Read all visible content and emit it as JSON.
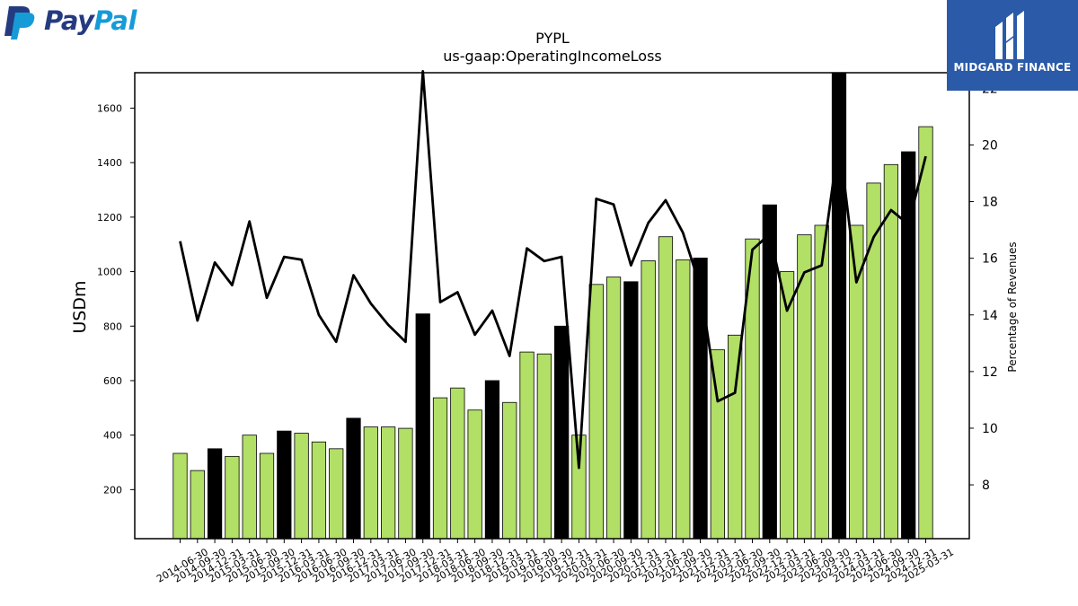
{
  "brand": {
    "paypal_part1": "Pay",
    "paypal_part2": "Pal",
    "watermark": "MIDGARD FINANCE",
    "paypal_dark": "#253b80",
    "paypal_light": "#179bd7",
    "watermark_bg": "#2a5aa8"
  },
  "chart_data": {
    "type": "bar",
    "title": "PYPL",
    "subtitle": "us-gaap:OperatingIncomeLoss",
    "ylabel": "USDm",
    "y2label": "Percentage of Revenues",
    "ylim": [
      20,
      1730
    ],
    "y2lim": [
      6.1,
      22.55
    ],
    "yticks": [
      200,
      400,
      600,
      800,
      1000,
      1200,
      1400,
      1600
    ],
    "y2ticks": [
      8,
      10,
      12,
      14,
      16,
      18,
      20,
      22
    ],
    "categories": [
      "2014-06-30",
      "2014-09-30",
      "2014-12-31",
      "2015-03-31",
      "2015-06-30",
      "2015-09-30",
      "2015-12-31",
      "2016-03-31",
      "2016-06-30",
      "2016-09-30",
      "2016-12-31",
      "2017-03-31",
      "2017-06-30",
      "2017-09-30",
      "2017-12-31",
      "2018-03-31",
      "2018-06-30",
      "2018-09-30",
      "2018-12-31",
      "2019-03-31",
      "2019-06-30",
      "2019-09-30",
      "2019-12-31",
      "2020-03-31",
      "2020-06-30",
      "2020-09-30",
      "2020-12-31",
      "2021-03-31",
      "2021-06-30",
      "2021-09-30",
      "2021-12-31",
      "2022-03-31",
      "2022-06-30",
      "2022-09-30",
      "2022-12-31",
      "2023-03-31",
      "2023-06-30",
      "2023-09-30",
      "2023-12-31",
      "2024-03-31",
      "2024-06-30",
      "2024-09-30",
      "2024-12-31",
      "2025-03-31"
    ],
    "series": [
      {
        "type": "bar",
        "values": [
          333,
          270,
          350,
          322,
          400,
          333,
          415,
          407,
          375,
          350,
          462,
          430,
          430,
          425,
          845,
          537,
          573,
          492,
          600,
          520,
          705,
          698,
          800,
          400,
          953,
          980,
          963,
          1040,
          1128,
          1043,
          1050,
          713,
          767,
          1120,
          1245,
          1000,
          1135,
          1170,
          1727,
          1170,
          1325,
          1393,
          1440,
          1532
        ]
      },
      {
        "type": "line",
        "axis": "right",
        "values": [
          16.6,
          13.8,
          15.85,
          15.05,
          17.3,
          14.6,
          16.05,
          15.95,
          14.0,
          13.05,
          15.4,
          14.4,
          13.65,
          13.05,
          22.6,
          14.45,
          14.8,
          13.3,
          14.15,
          12.55,
          16.35,
          15.9,
          16.05,
          8.6,
          18.1,
          17.9,
          15.75,
          17.25,
          18.05,
          16.9,
          15.0,
          10.95,
          11.25,
          16.3,
          16.85,
          14.15,
          15.5,
          15.75,
          20.2,
          15.15,
          16.75,
          17.7,
          17.2,
          19.6
        ]
      }
    ],
    "bar_colors": {
      "regular": "#b2df66",
      "highlight": "#000000",
      "edge": "#000000"
    },
    "highlight_indices": [
      2,
      6,
      10,
      14,
      18,
      22,
      26,
      30,
      34,
      38,
      42
    ],
    "line_color": "#000000",
    "grid": false
  }
}
